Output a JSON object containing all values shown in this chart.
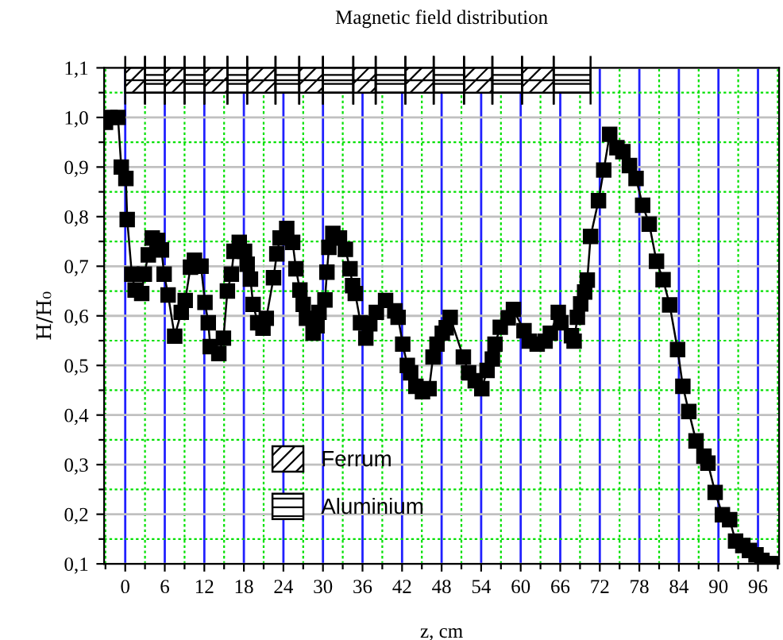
{
  "chart_data": {
    "type": "line",
    "title": "Magnetic field distribution",
    "xlabel": "z, cm",
    "ylabel": "H/H₀",
    "xlim": [
      -3.2,
      99.2
    ],
    "ylim": [
      0.1,
      1.1
    ],
    "xticks": [
      {
        "value": -3,
        "label": null
      },
      0,
      {
        "value": 3,
        "label": null
      },
      6,
      {
        "value": 9,
        "label": null
      },
      12,
      {
        "value": 15,
        "label": null
      },
      18,
      {
        "value": 21,
        "label": null
      },
      24,
      {
        "value": 27,
        "label": null
      },
      30,
      {
        "value": 33,
        "label": null
      },
      36,
      {
        "value": 39,
        "label": null
      },
      42,
      {
        "value": 45,
        "label": null
      },
      48,
      {
        "value": 51,
        "label": null
      },
      54,
      {
        "value": 57,
        "label": null
      },
      60,
      {
        "value": 63,
        "label": null
      },
      66,
      {
        "value": 69,
        "label": null
      },
      72,
      {
        "value": 75,
        "label": null
      },
      78,
      {
        "value": 81,
        "label": null
      },
      84,
      {
        "value": 87,
        "label": null
      },
      90,
      {
        "value": 93,
        "label": null
      },
      96,
      {
        "value": 99,
        "label": null
      }
    ],
    "yticks": [
      {
        "value": 0.1,
        "label": "0,1"
      },
      {
        "value": 0.15,
        "label": null
      },
      {
        "value": 0.2,
        "label": "0,2"
      },
      {
        "value": 0.25,
        "label": null
      },
      {
        "value": 0.3,
        "label": "0,3"
      },
      {
        "value": 0.35,
        "label": null
      },
      {
        "value": 0.4,
        "label": "0,4"
      },
      {
        "value": 0.45,
        "label": null
      },
      {
        "value": 0.5,
        "label": "0,5"
      },
      {
        "value": 0.55,
        "label": null
      },
      {
        "value": 0.6,
        "label": "0,6"
      },
      {
        "value": 0.65,
        "label": null
      },
      {
        "value": 0.7,
        "label": "0,7"
      },
      {
        "value": 0.75,
        "label": null
      },
      {
        "value": 0.8,
        "label": "0,8"
      },
      {
        "value": 0.85,
        "label": null
      },
      {
        "value": 0.9,
        "label": "0,9"
      },
      {
        "value": 0.95,
        "label": null
      },
      {
        "value": 1.0,
        "label": "1,0"
      },
      {
        "value": 1.05,
        "label": null
      },
      {
        "value": 1.1,
        "label": "1,1"
      }
    ],
    "grid": true,
    "legend": "bottom left",
    "marker": "square",
    "line_style": "solid",
    "series": [
      {
        "color": "#000000",
        "x": [
          -3,
          -2.3,
          -1.1,
          -0.6,
          0.1,
          0.3,
          1.0,
          1.5,
          2.5,
          2.9,
          3.5,
          4.1,
          4.9,
          5.5,
          5.9,
          6.5,
          7.5,
          8.5,
          9.1,
          9.9,
          10.5,
          11.5,
          12.1,
          12.6,
          12.9,
          14.2,
          14.9,
          15.5,
          16.1,
          16.5,
          17.3,
          18.1,
          18.5,
          19.0,
          19.4,
          20.1,
          20.9,
          21.4,
          22.5,
          23.0,
          23.5,
          24.5,
          25.4,
          25.9,
          26.5,
          27.0,
          27.5,
          28.5,
          29.1,
          29.4,
          30.3,
          30.6,
          30.9,
          31.5,
          32.5,
          33.4,
          34.1,
          34.5,
          34.9,
          35.7,
          36.5,
          37.1,
          38.1,
          39.5,
          40.9,
          41.4,
          42.1,
          42.8,
          43.3,
          44.1,
          45.1,
          46.1,
          46.7,
          47.3,
          48.1,
          48.7,
          49.3,
          51.3,
          52.1,
          53.1,
          54.1,
          54.9,
          55.7,
          56.1,
          56.9,
          58.1,
          58.9,
          60.5,
          61.3,
          62.5,
          63.7,
          64.5,
          65.7,
          66.1,
          67.7,
          68.1,
          68.6,
          69.1,
          69.7,
          70.1,
          70.6,
          71.8,
          72.6,
          73.5,
          74.6,
          75.5,
          76.5,
          77.5,
          78.5,
          79.5,
          80.6,
          81.6,
          82.6,
          83.8,
          84.6,
          85.5,
          86.6,
          87.8,
          88.4,
          89.5,
          90.6,
          91.7,
          92.6,
          93.7,
          94.7,
          95.7,
          96.6,
          97.7,
          98.9
        ],
        "values": [
          0.99,
          1.0,
          1.0,
          0.9,
          0.877,
          0.794,
          0.684,
          0.652,
          0.645,
          0.684,
          0.723,
          0.757,
          0.752,
          0.733,
          0.684,
          0.642,
          0.559,
          0.607,
          0.631,
          0.698,
          0.712,
          0.7,
          0.627,
          0.586,
          0.538,
          0.524,
          0.555,
          0.65,
          0.684,
          0.73,
          0.748,
          0.73,
          0.704,
          0.674,
          0.623,
          0.586,
          0.575,
          0.595,
          0.677,
          0.725,
          0.757,
          0.776,
          0.748,
          0.695,
          0.652,
          0.623,
          0.595,
          0.565,
          0.58,
          0.607,
          0.632,
          0.688,
          0.738,
          0.766,
          0.757,
          0.734,
          0.695,
          0.661,
          0.645,
          0.586,
          0.555,
          0.584,
          0.607,
          0.631,
          0.61,
          0.597,
          0.543,
          0.5,
          0.485,
          0.458,
          0.447,
          0.453,
          0.517,
          0.543,
          0.565,
          0.576,
          0.597,
          0.517,
          0.485,
          0.469,
          0.453,
          0.49,
          0.513,
          0.543,
          0.577,
          0.596,
          0.613,
          0.57,
          0.549,
          0.543,
          0.549,
          0.565,
          0.607,
          0.586,
          0.56,
          0.549,
          0.597,
          0.624,
          0.648,
          0.672,
          0.76,
          0.832,
          0.894,
          0.966,
          0.939,
          0.931,
          0.903,
          0.877,
          0.823,
          0.785,
          0.71,
          0.673,
          0.622,
          0.532,
          0.458,
          0.407,
          0.348,
          0.317,
          0.303,
          0.244,
          0.199,
          0.189,
          0.146,
          0.137,
          0.127,
          0.118,
          0.107,
          0.1,
          0.1
        ]
      },
      {
        "type": "bar",
        "name": "Ferrum",
        "color": "#000000",
        "x": [
          1.5,
          7.5,
          13.75,
          20.65,
          28.2,
          36.3,
          44.65,
          53.55,
          62.6
        ],
        "xerrors": [
          1.5,
          1.5,
          1.75,
          2.15,
          1.8,
          1.7,
          2.15,
          2.15,
          2.4
        ],
        "values": [
          0.05,
          0.05,
          0.05,
          0.05,
          0.05,
          0.05,
          0.05,
          0.05,
          0.05
        ],
        "base": [
          1.05,
          1.05,
          1.05,
          1.05,
          1.05,
          1.05,
          1.05,
          1.05,
          1.05
        ]
      },
      {
        "type": "bar",
        "name": "Aluminium",
        "color": "#000000",
        "x": [
          4.5,
          10.5,
          17,
          24.6,
          32.3,
          40.25,
          49.1,
          57.95,
          67.8
        ],
        "xerrors": [
          1.5,
          1.5,
          1.5,
          1.8,
          2.3,
          2.25,
          2.3,
          2.25,
          2.8
        ],
        "values": [
          0.05,
          0.05,
          0.05,
          0.05,
          0.05,
          0.05,
          0.05,
          0.05,
          0.05
        ],
        "base": [
          1.05,
          1.05,
          1.05,
          1.05,
          1.05,
          1.05,
          1.05,
          1.05,
          1.05
        ]
      }
    ]
  }
}
